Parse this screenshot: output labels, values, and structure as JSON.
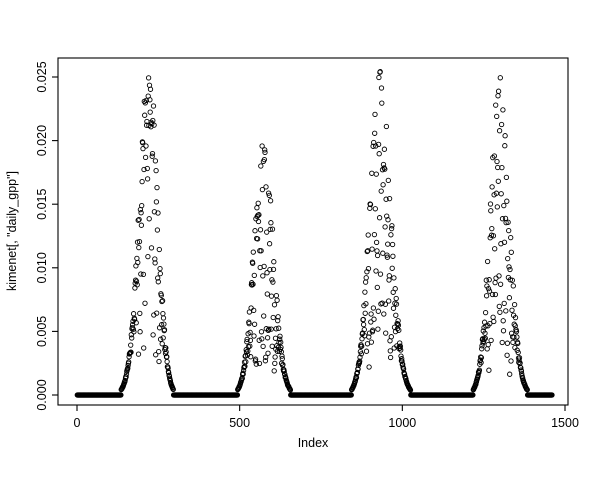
{
  "figure": {
    "background": "#ffffff",
    "window_size": "600x480"
  },
  "chart_data": {
    "type": "scatter",
    "title": "",
    "xlabel": "Index",
    "ylabel": "kimenet[, \"daily_gpp\"]",
    "x_ticks": [
      0,
      500,
      1000,
      1500
    ],
    "y_tick_labels": [
      "0.000",
      "0.005",
      "0.010",
      "0.015",
      "0.020",
      "0.025"
    ],
    "y_tick_values": [
      0,
      0.005,
      0.01,
      0.015,
      0.02,
      0.025
    ],
    "xlim": [
      -58,
      1518
    ],
    "ylim": [
      -0.001,
      0.0265
    ],
    "grid": false,
    "legend": "none",
    "n_points": 1460,
    "marker": "open-circle",
    "marker_color": "#000000",
    "axis_color": "#000000",
    "baseline_value": 0,
    "zero_segments": [
      [
        1,
        149
      ],
      [
        278,
        507
      ],
      [
        637,
        861
      ],
      [
        1006,
        1231
      ],
      [
        1369,
        1460
      ]
    ],
    "seasonal_peaks": [
      {
        "x_start": 150,
        "x_center": 222,
        "x_end": 277,
        "y_max": 0.0256,
        "sigma_left": 30,
        "sigma_right": 26
      },
      {
        "x_start": 508,
        "x_center": 572,
        "x_end": 636,
        "y_max": 0.0205,
        "sigma_left": 28,
        "sigma_right": 30
      },
      {
        "x_start": 862,
        "x_center": 930,
        "x_end": 1005,
        "y_max": 0.0254,
        "sigma_left": 30,
        "sigma_right": 33
      },
      {
        "x_start": 1232,
        "x_center": 1298,
        "x_end": 1368,
        "y_max": 0.0245,
        "sigma_left": 28,
        "sigma_right": 30
      }
    ],
    "seed": 11
  }
}
